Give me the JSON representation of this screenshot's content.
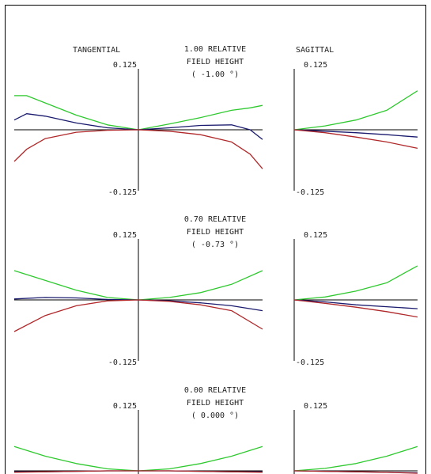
{
  "header": {
    "tangential": "TANGENTIAL",
    "sagittal": "SAGITTAL"
  },
  "colors": {
    "axis": "#000000",
    "border": "#000000",
    "green": "#2fc92f",
    "blue": "#1a1a6e",
    "red": "#b0282a"
  },
  "chart_data": [
    {
      "type": "line",
      "field_label": [
        "1.00 RELATIVE",
        "FIELD HEIGHT",
        "( -1.00 °)"
      ],
      "ylim": [
        -0.125,
        0.125
      ],
      "ytick_top": "0.125",
      "ytick_bottom": "-0.125",
      "tangential": {
        "x": [
          -1,
          -0.9,
          -0.75,
          -0.5,
          -0.25,
          0,
          0.25,
          0.5,
          0.75,
          0.9,
          1
        ],
        "series": [
          {
            "color": "green",
            "values": [
              0.07,
              0.07,
              0.055,
              0.03,
              0.01,
              0,
              0.012,
              0.025,
              0.04,
              0.045,
              0.05
            ]
          },
          {
            "color": "blue",
            "values": [
              0.02,
              0.033,
              0.028,
              0.014,
              0.004,
              0,
              0.004,
              0.009,
              0.01,
              0.0,
              -0.02
            ]
          },
          {
            "color": "red",
            "values": [
              -0.065,
              -0.04,
              -0.018,
              -0.005,
              -0.001,
              0,
              -0.003,
              -0.01,
              -0.025,
              -0.05,
              -0.08
            ]
          }
        ]
      },
      "sagittal": {
        "x": [
          0,
          0.25,
          0.5,
          0.75,
          1
        ],
        "series": [
          {
            "color": "green",
            "values": [
              0,
              0.008,
              0.02,
              0.04,
              0.08
            ]
          },
          {
            "color": "blue",
            "values": [
              0,
              -0.003,
              -0.006,
              -0.01,
              -0.015
            ]
          },
          {
            "color": "red",
            "values": [
              0,
              -0.006,
              -0.015,
              -0.025,
              -0.038
            ]
          }
        ]
      }
    },
    {
      "type": "line",
      "field_label": [
        "0.70 RELATIVE",
        "FIELD HEIGHT",
        "( -0.73 °)"
      ],
      "ylim": [
        -0.125,
        0.125
      ],
      "ytick_top": "0.125",
      "ytick_bottom": "-0.125",
      "tangential": {
        "x": [
          -1,
          -0.75,
          -0.5,
          -0.25,
          0,
          0.25,
          0.5,
          0.75,
          1
        ],
        "series": [
          {
            "color": "green",
            "values": [
              0.06,
              0.04,
              0.02,
              0.005,
              0,
              0.005,
              0.015,
              0.032,
              0.06
            ]
          },
          {
            "color": "blue",
            "values": [
              0.002,
              0.005,
              0.004,
              0.001,
              0,
              -0.002,
              -0.006,
              -0.012,
              -0.022
            ]
          },
          {
            "color": "red",
            "values": [
              -0.065,
              -0.032,
              -0.012,
              -0.002,
              0,
              -0.003,
              -0.01,
              -0.022,
              -0.06
            ]
          }
        ]
      },
      "sagittal": {
        "x": [
          0,
          0.25,
          0.5,
          0.75,
          1
        ],
        "series": [
          {
            "color": "green",
            "values": [
              0,
              0.006,
              0.018,
              0.035,
              0.07
            ]
          },
          {
            "color": "blue",
            "values": [
              0,
              -0.004,
              -0.01,
              -0.014,
              -0.018
            ]
          },
          {
            "color": "red",
            "values": [
              0,
              -0.007,
              -0.015,
              -0.024,
              -0.035
            ]
          }
        ]
      }
    },
    {
      "type": "line",
      "field_label": [
        "0.00 RELATIVE",
        "FIELD HEIGHT",
        "( 0.000 °)"
      ],
      "ylim": [
        -0.125,
        0.125
      ],
      "ytick_top": "0.125",
      "ytick_bottom": "",
      "tangential": {
        "x": [
          -1,
          -0.75,
          -0.5,
          -0.25,
          0,
          0.25,
          0.5,
          0.75,
          1
        ],
        "series": [
          {
            "color": "green",
            "values": [
              0.05,
              0.03,
              0.015,
              0.004,
              0,
              0.004,
              0.015,
              0.03,
              0.05
            ]
          },
          {
            "color": "blue",
            "values": [
              -0.002,
              -0.002,
              -0.001,
              0,
              0,
              0,
              -0.001,
              -0.002,
              -0.002
            ]
          },
          {
            "color": "red",
            "values": [
              -0.003,
              -0.002,
              -0.001,
              0,
              0,
              0,
              -0.001,
              -0.002,
              -0.003
            ]
          }
        ]
      },
      "sagittal": {
        "x": [
          0,
          0.25,
          0.5,
          0.75,
          1
        ],
        "series": [
          {
            "color": "green",
            "values": [
              0,
              0.005,
              0.015,
              0.03,
              0.05
            ]
          },
          {
            "color": "blue",
            "values": [
              0,
              -0.001,
              -0.002,
              -0.003,
              -0.004
            ]
          },
          {
            "color": "red",
            "values": [
              0,
              -0.001,
              -0.002,
              -0.003,
              -0.005
            ]
          }
        ]
      }
    }
  ]
}
